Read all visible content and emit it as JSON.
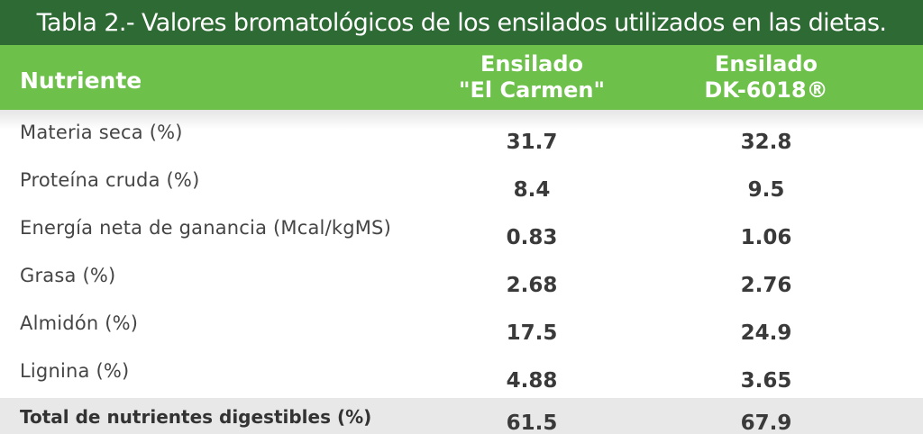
{
  "title": "Tabla 2.- Valores bromatológicos de los ensilados utilizados en las dietas.",
  "header": {
    "nutrient": "Nutriente",
    "col1_line1": "Ensilado",
    "col1_line2": "\"El Carmen\"",
    "col2_line1": "Ensilado",
    "col2_line2": "DK-6018®"
  },
  "rows": [
    {
      "label": "Materia seca (%)",
      "v1": "31.7",
      "v2": "32.8"
    },
    {
      "label": "Proteína cruda (%)",
      "v1": "8.4",
      "v2": "9.5"
    },
    {
      "label": "Energía neta de ganancia (Mcal/kgMS)",
      "v1": "0.83",
      "v2": "1.06"
    },
    {
      "label": "Grasa (%)",
      "v1": "2.68",
      "v2": "2.76"
    },
    {
      "label": "Almidón (%)",
      "v1": "17.5",
      "v2": "24.9"
    },
    {
      "label": "Lignina (%)",
      "v1": "4.88",
      "v2": "3.65"
    }
  ],
  "total": {
    "label": "Total de nutrientes digestibles (%)",
    "v1": "61.5",
    "v2": "67.9"
  },
  "colors": {
    "title_bg": "#2e6b34",
    "header_bg": "#6dc04a",
    "total_bg": "#e8e8e8"
  }
}
